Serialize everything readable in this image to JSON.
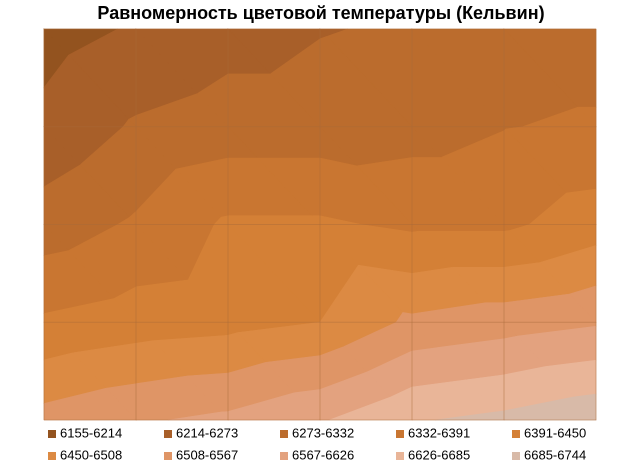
{
  "chart_data": {
    "type": "contour",
    "title": "Равномерность цветовой температуры (Кельвин)",
    "z": [
      [
        6190,
        6220,
        6250,
        6270,
        6280,
        6300,
        6300
      ],
      [
        6230,
        6280,
        6300,
        6300,
        6310,
        6330,
        6340
      ],
      [
        6300,
        6340,
        6400,
        6400,
        6380,
        6380,
        6420
      ],
      [
        6400,
        6420,
        6430,
        6450,
        6520,
        6540,
        6560
      ],
      [
        6530,
        6560,
        6580,
        6620,
        6680,
        6700,
        6730
      ]
    ],
    "levels": [
      6155,
      6214,
      6273,
      6332,
      6391,
      6450,
      6508,
      6567,
      6626,
      6685,
      6744
    ],
    "series": [
      {
        "name": "6155-6214",
        "color": "#93531f"
      },
      {
        "name": "6214-6273",
        "color": "#a85f29"
      },
      {
        "name": "6273-6332",
        "color": "#bb6c2d"
      },
      {
        "name": "6332-6391",
        "color": "#c97631"
      },
      {
        "name": "6391-6450",
        "color": "#d48036"
      },
      {
        "name": "6450-6508",
        "color": "#dc8a43"
      },
      {
        "name": "6508-6567",
        "color": "#df9566"
      },
      {
        "name": "6567-6626",
        "color": "#e3a27f"
      },
      {
        "name": "6626-6685",
        "color": "#e9b598"
      },
      {
        "name": "6685-6744",
        "color": "#d8baa8"
      }
    ]
  }
}
